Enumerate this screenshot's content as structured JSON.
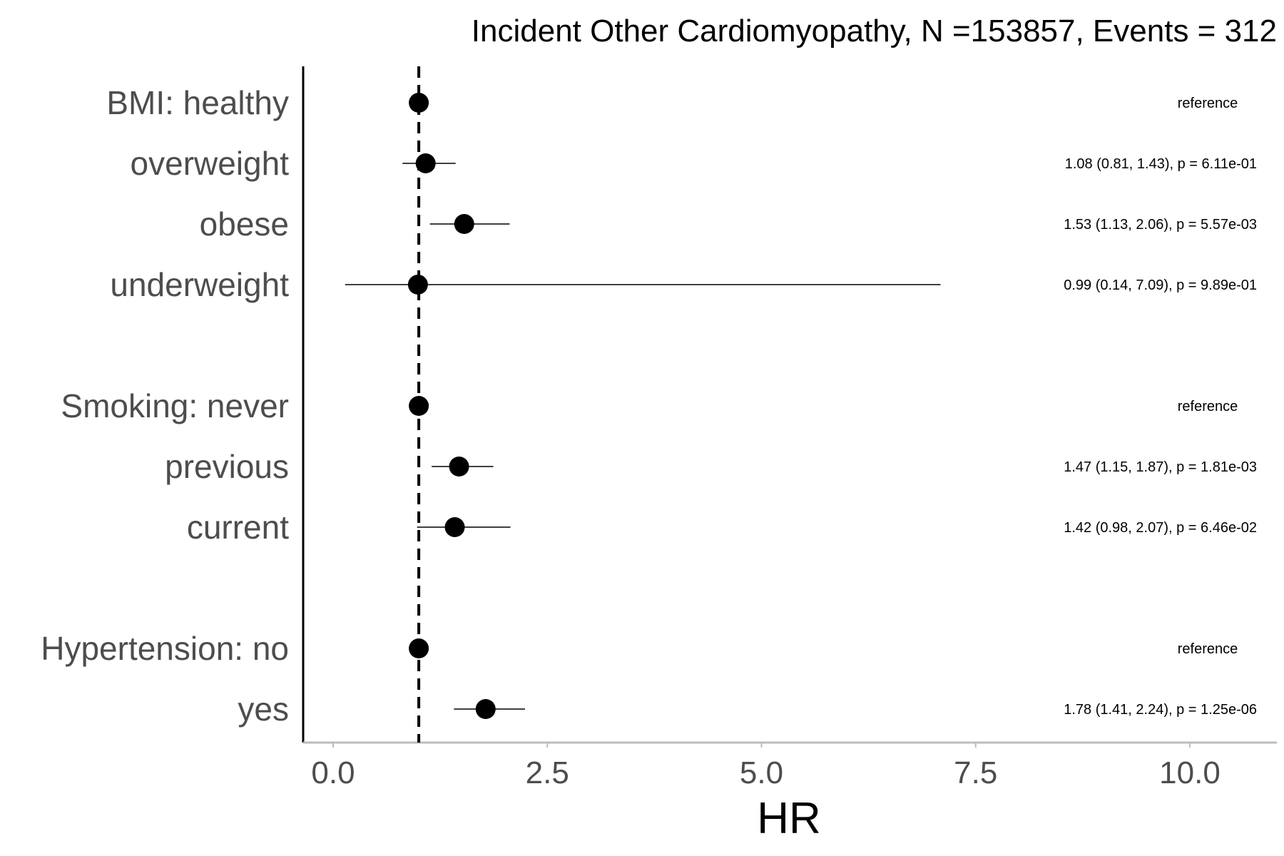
{
  "chart_data": {
    "type": "scatter",
    "title": "Incident Other Cardiomyopathy, N =153857, Events = 312",
    "xlabel": "HR",
    "ylabel": "",
    "xlim": [
      0,
      10.5
    ],
    "x_ticks": [
      0,
      2.5,
      5,
      7.5,
      10
    ],
    "x_tick_labels": [
      "0.0",
      "2.5",
      "5.0",
      "7.5",
      "10.0"
    ],
    "reference_line": 1,
    "grid": false,
    "legend": "none",
    "rows": [
      {
        "label": "BMI: healthy",
        "hr": 1.0,
        "lower": null,
        "upper": null,
        "annotation": "reference"
      },
      {
        "label": "overweight",
        "hr": 1.08,
        "lower": 0.81,
        "upper": 1.43,
        "annotation": "1.08 (0.81, 1.43), p = 6.11e-01"
      },
      {
        "label": "obese",
        "hr": 1.53,
        "lower": 1.13,
        "upper": 2.06,
        "annotation": "1.53 (1.13, 2.06), p = 5.57e-03"
      },
      {
        "label": "underweight",
        "hr": 0.99,
        "lower": 0.14,
        "upper": 7.09,
        "annotation": "0.99 (0.14, 7.09), p = 9.89e-01"
      },
      {
        "label": "Smoking: never",
        "hr": 1.0,
        "lower": null,
        "upper": null,
        "annotation": "reference"
      },
      {
        "label": "previous",
        "hr": 1.47,
        "lower": 1.15,
        "upper": 1.87,
        "annotation": "1.47 (1.15, 1.87), p = 1.81e-03"
      },
      {
        "label": "current",
        "hr": 1.42,
        "lower": 0.98,
        "upper": 2.07,
        "annotation": "1.42 (0.98, 2.07), p = 6.46e-02"
      },
      {
        "label": "Hypertension: no",
        "hr": 1.0,
        "lower": null,
        "upper": null,
        "annotation": "reference"
      },
      {
        "label": "yes",
        "hr": 1.78,
        "lower": 1.41,
        "upper": 2.24,
        "annotation": "1.78 (1.41, 2.24), p = 1.25e-06"
      }
    ],
    "colors": {
      "point": "#000000",
      "axis": "#000000",
      "x_axis_line": "#bdbdbd",
      "label": "#4d4d4d"
    }
  }
}
